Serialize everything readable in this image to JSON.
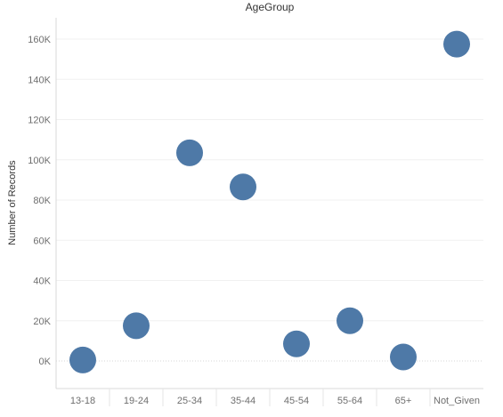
{
  "chart_data": {
    "type": "scatter",
    "title": "AgeGroup",
    "xlabel": "",
    "ylabel": "Number of Records",
    "categories": [
      "13-18",
      "19-24",
      "25-34",
      "35-44",
      "45-54",
      "55-64",
      "65+",
      "Not_Given"
    ],
    "series": [
      {
        "values": [
          500,
          17500,
          103500,
          86500,
          8500,
          20000,
          2000,
          157500
        ]
      }
    ],
    "y_ticks": [
      "0K",
      "20K",
      "40K",
      "60K",
      "80K",
      "100K",
      "120K",
      "140K",
      "160K"
    ],
    "y_tick_values": [
      0,
      20000,
      40000,
      60000,
      80000,
      100000,
      120000,
      140000,
      160000
    ],
    "ylim": [
      -15000,
      175000
    ],
    "grid": true,
    "legend": "none",
    "colors": {
      "mark": "#4e79a7",
      "gridline": "#f0f0f0",
      "axis": "#d9d9d9"
    }
  }
}
